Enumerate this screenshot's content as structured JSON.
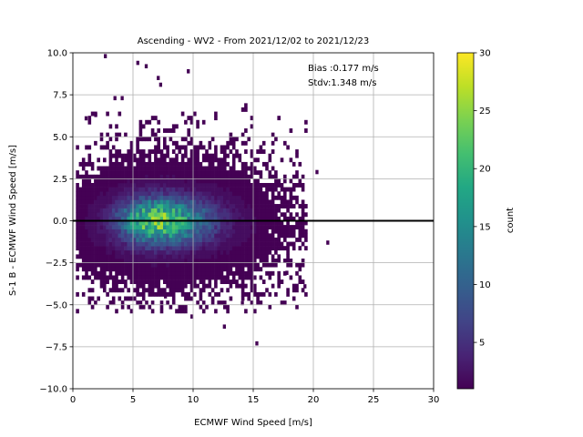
{
  "chart_data": {
    "type": "heatmap",
    "title": "Ascending - WV2 - From 2021/12/02 to 2021/12/23",
    "xlabel": "ECMWF Wind Speed [m/s]",
    "ylabel": "S-1 B - ECMWF Wind Speed [m/s]",
    "xlim": [
      0,
      30
    ],
    "ylim": [
      -10,
      10
    ],
    "x_ticks": [
      "0",
      "5",
      "10",
      "15",
      "20",
      "25",
      "30"
    ],
    "y_ticks": [
      "−10.0",
      "−7.5",
      "−5.0",
      "−2.5",
      "0.0",
      "2.5",
      "5.0",
      "7.5",
      "10.0"
    ],
    "grid": true,
    "reference_line_y": 0,
    "annotations": [
      "Bias :0.177 m/s",
      "Stdv:1.348 m/s"
    ],
    "annotation_placement": "top-right",
    "colorbar": {
      "label": "count",
      "colormap": "viridis",
      "range": [
        1,
        30
      ],
      "ticks": [
        "5",
        "10",
        "15",
        "20",
        "25",
        "30"
      ]
    },
    "bin_size": [
      0.25,
      0.25
    ],
    "density_core": {
      "x_center": 7.0,
      "y_center": 0.0,
      "peak_count": 27
    },
    "outlier_points": [
      {
        "x": 2.7,
        "y": 9.8
      },
      {
        "x": 5.4,
        "y": 9.4
      },
      {
        "x": 6.1,
        "y": 9.2
      },
      {
        "x": 9.6,
        "y": 8.9
      },
      {
        "x": 7.1,
        "y": 8.5
      },
      {
        "x": 7.3,
        "y": 8.1
      },
      {
        "x": 3.5,
        "y": 7.3
      },
      {
        "x": 4.1,
        "y": 7.3
      },
      {
        "x": 1.9,
        "y": 6.3
      },
      {
        "x": 1.1,
        "y": 6.1
      },
      {
        "x": 20.3,
        "y": 2.9
      },
      {
        "x": 21.2,
        "y": -1.3
      },
      {
        "x": 17.8,
        "y": -3.1
      },
      {
        "x": 19.3,
        "y": -3.9
      },
      {
        "x": 7.7,
        "y": -4.5
      },
      {
        "x": 14.1,
        "y": -4.9
      },
      {
        "x": 9.9,
        "y": -5.7
      },
      {
        "x": 12.6,
        "y": -6.3
      },
      {
        "x": 15.3,
        "y": -7.3
      }
    ]
  }
}
